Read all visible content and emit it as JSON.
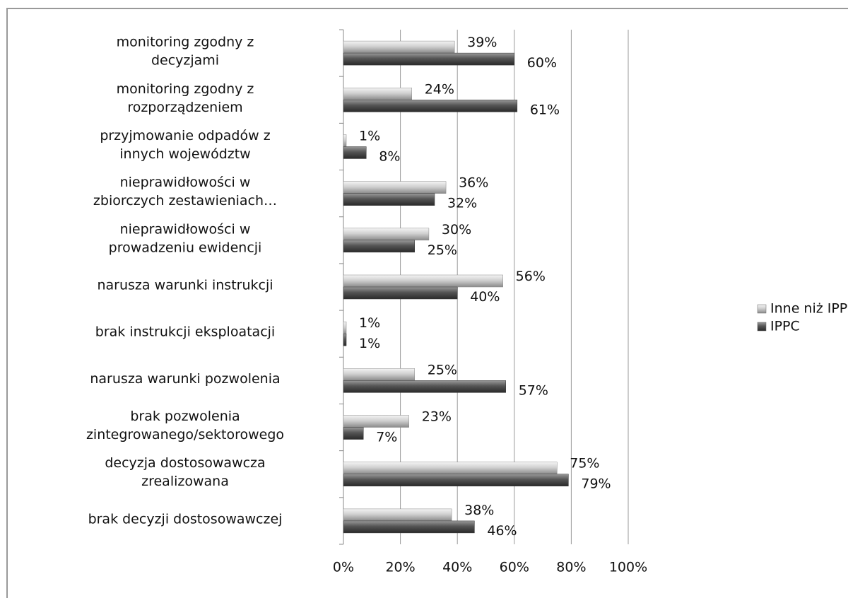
{
  "chart_data": {
    "type": "bar",
    "orientation": "horizontal",
    "categories": [
      [
        "monitoring zgodny z",
        "decyzjami"
      ],
      [
        "monitoring zgodny z",
        "rozporządzeniem"
      ],
      [
        "przyjmowanie odpadów z",
        "innych województw"
      ],
      [
        "nieprawidłowości w",
        "zbiorczych zestawieniach…"
      ],
      [
        "nieprawidłowości w",
        "prowadzeniu ewidencji"
      ],
      [
        "narusza warunki instrukcji"
      ],
      [
        "brak instrukcji eksploatacji"
      ],
      [
        "narusza warunki pozwolenia"
      ],
      [
        "brak pozwolenia",
        "zintegrowanego/sektorowego"
      ],
      [
        "decyzja dostosowawcza",
        "zrealizowana"
      ],
      [
        "brak decyzji dostosowawczej"
      ]
    ],
    "series": [
      {
        "name": "Inne niż IPPC",
        "color": "#c8c8c8",
        "values": [
          39,
          24,
          1,
          36,
          30,
          56,
          1,
          25,
          23,
          75,
          38
        ],
        "value_labels": [
          "39%",
          "24%",
          "1%",
          "36%",
          "30%",
          "56%",
          "1%",
          "25%",
          "23%",
          "75%",
          "38%"
        ]
      },
      {
        "name": "IPPC",
        "color": "#555555",
        "values": [
          60,
          61,
          8,
          32,
          25,
          40,
          1,
          57,
          7,
          79,
          46
        ],
        "value_labels": [
          "60%",
          "61%",
          "8%",
          "32%",
          "25%",
          "40%",
          "1%",
          "57%",
          "7%",
          "79%",
          "46%"
        ]
      }
    ],
    "xlim": [
      0,
      100
    ],
    "xticks": [
      {
        "value": 0,
        "label": "0%"
      },
      {
        "value": 20,
        "label": "20%"
      },
      {
        "value": 40,
        "label": "40%"
      },
      {
        "value": 60,
        "label": "60%"
      },
      {
        "value": 80,
        "label": "80%"
      },
      {
        "value": 100,
        "label": "100%"
      }
    ],
    "grid": true,
    "legend": "right"
  }
}
